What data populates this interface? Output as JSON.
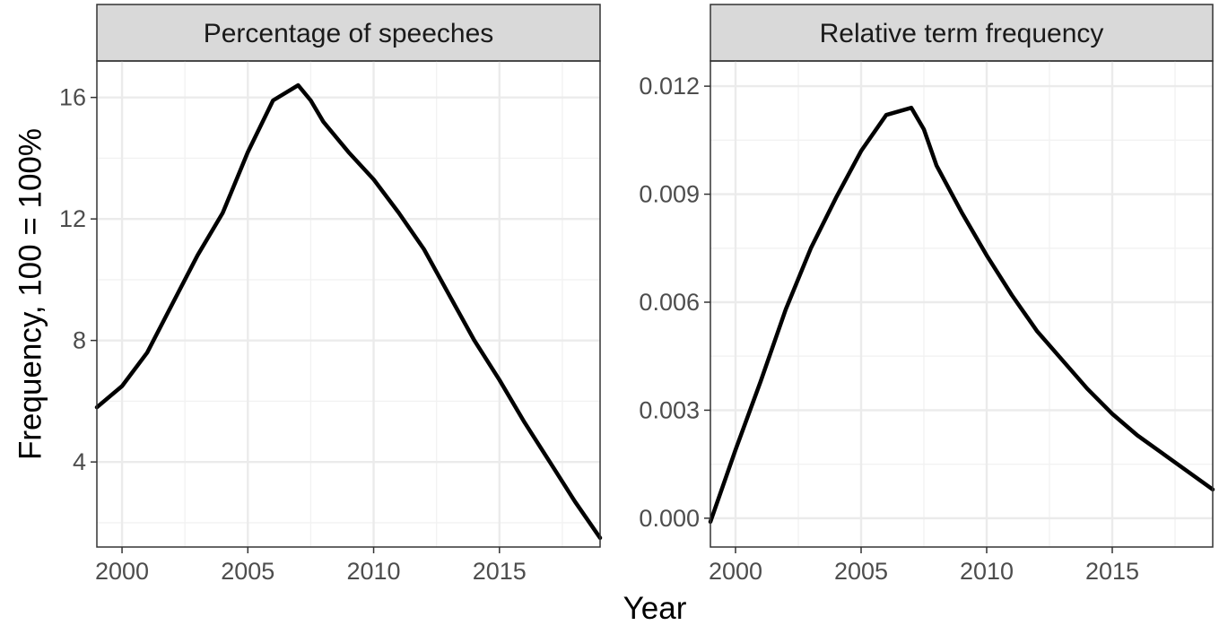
{
  "figure": {
    "xlabel": "Year",
    "ylabel": "Frequency, 100 = 100%"
  },
  "chart_data": [
    {
      "type": "line",
      "title": "Percentage of speeches",
      "xlim": [
        1999,
        2019
      ],
      "ylim": [
        1.2,
        17.2
      ],
      "x_ticks": [
        2000,
        2005,
        2010,
        2015
      ],
      "x_minor": [
        2002.5,
        2007.5,
        2012.5,
        2017.5
      ],
      "y_ticks": [
        4,
        8,
        12,
        16
      ],
      "y_minor": [
        2,
        6,
        10,
        14
      ],
      "tick_labels_x": [
        "2000",
        "2005",
        "2010",
        "2015"
      ],
      "tick_labels_y": [
        "4",
        "8",
        "12",
        "16"
      ],
      "grid": true,
      "series": [
        {
          "x": [
            1999,
            2000,
            2001,
            2002,
            2003,
            2004,
            2005,
            2006,
            2007,
            2007.5,
            2008,
            2009,
            2010,
            2011,
            2012,
            2013,
            2014,
            2015,
            2016,
            2017,
            2018,
            2019
          ],
          "y": [
            5.8,
            6.5,
            7.6,
            9.2,
            10.8,
            12.2,
            14.2,
            15.9,
            16.4,
            15.9,
            15.2,
            14.2,
            13.3,
            12.2,
            11.0,
            9.5,
            8.0,
            6.7,
            5.3,
            4.0,
            2.7,
            1.5
          ]
        }
      ]
    },
    {
      "type": "line",
      "title": "Relative term frequency",
      "xlim": [
        1999,
        2019
      ],
      "ylim": [
        -0.0008,
        0.0127
      ],
      "x_ticks": [
        2000,
        2005,
        2010,
        2015
      ],
      "x_minor": [
        2002.5,
        2007.5,
        2012.5,
        2017.5
      ],
      "y_ticks": [
        0.0,
        0.003,
        0.006,
        0.009,
        0.012
      ],
      "y_minor": [
        0.0015,
        0.0045,
        0.0075,
        0.0105
      ],
      "tick_labels_x": [
        "2000",
        "2005",
        "2010",
        "2015"
      ],
      "tick_labels_y": [
        "0.000",
        "0.003",
        "0.006",
        "0.009",
        "0.012"
      ],
      "grid": true,
      "series": [
        {
          "x": [
            1999,
            2000,
            2001,
            2002,
            2003,
            2004,
            2005,
            2006,
            2007,
            2007.5,
            2008,
            2009,
            2010,
            2011,
            2012,
            2013,
            2014,
            2015,
            2016,
            2017,
            2018,
            2019
          ],
          "y": [
            -0.0001,
            0.0019,
            0.0038,
            0.0058,
            0.0075,
            0.0089,
            0.0102,
            0.0112,
            0.0114,
            0.0108,
            0.0098,
            0.0085,
            0.0073,
            0.0062,
            0.0052,
            0.0044,
            0.0036,
            0.0029,
            0.0023,
            0.0018,
            0.0013,
            0.0008
          ]
        }
      ]
    }
  ]
}
